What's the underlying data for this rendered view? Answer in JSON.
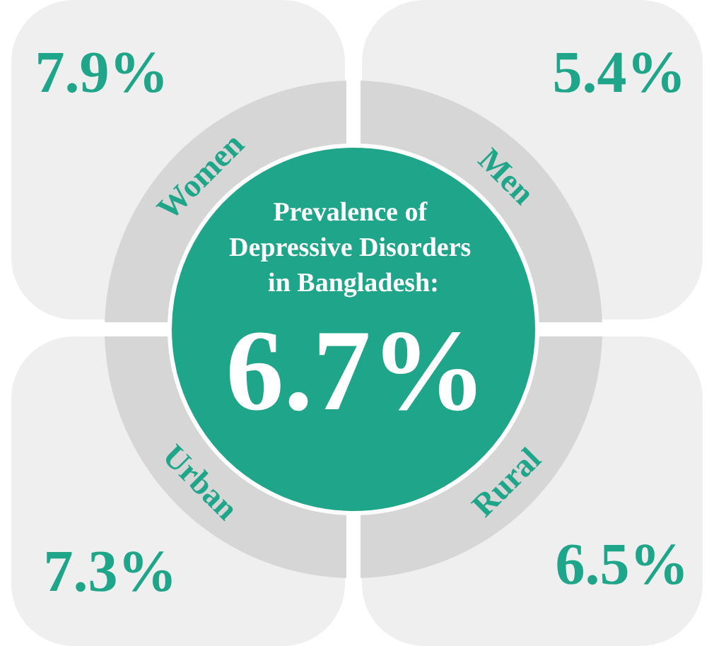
{
  "chart_data": {
    "type": "other",
    "title": "Prevalence of Depressive Disorders in Bangladesh:",
    "categories": [
      "Women",
      "Men",
      "Urban",
      "Rural"
    ],
    "values": [
      7.9,
      5.4,
      7.3,
      6.5
    ],
    "value_labels": [
      "7.9%",
      "5.4%",
      "7.3%",
      "6.5%"
    ],
    "annotations": [
      "6.7%"
    ]
  }
}
